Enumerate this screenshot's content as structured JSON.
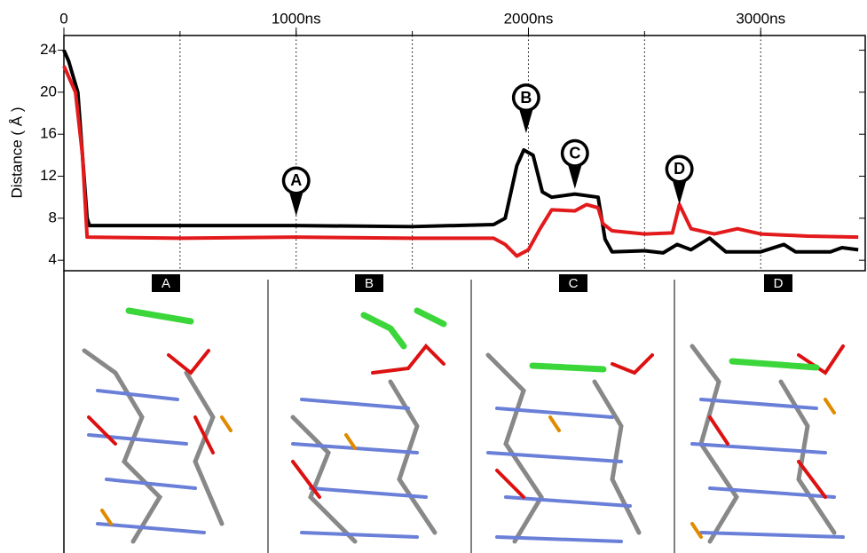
{
  "chart_data": {
    "type": "line",
    "y_label": "Distance ( Å )",
    "xlim": [
      0,
      3450
    ],
    "ylim": [
      3,
      25.4
    ],
    "xticks": [
      0,
      {
        "value": 1000,
        "label": "1000ns"
      },
      {
        "value": 2000,
        "label": "2000ns"
      },
      {
        "value": 3000,
        "label": "3000ns"
      }
    ],
    "x_gridlines": [
      500,
      1000,
      1500,
      2000,
      2500,
      3000
    ],
    "yticks": [
      4,
      8,
      12,
      16,
      20,
      24
    ],
    "grid": true,
    "series": [
      {
        "color": "#000000",
        "x": [
          0,
          20,
          60,
          100,
          110,
          500,
          1000,
          1500,
          1850,
          1900,
          1950,
          1980,
          2020,
          2060,
          2100,
          2200,
          2300,
          2330,
          2360,
          2500,
          2580,
          2640,
          2700,
          2780,
          2850,
          3000,
          3100,
          3150,
          3300,
          3350,
          3420
        ],
        "values": [
          24,
          23,
          20,
          8,
          7.3,
          7.3,
          7.3,
          7.2,
          7.4,
          8,
          13,
          14.5,
          14,
          10.5,
          10,
          10.3,
          10,
          6,
          4.8,
          4.9,
          4.7,
          5.5,
          5,
          6.1,
          4.8,
          4.8,
          5.5,
          4.8,
          4.8,
          5.2,
          5
        ]
      },
      {
        "color": "#e31a1c",
        "x": [
          0,
          50,
          80,
          100,
          500,
          1000,
          1500,
          1850,
          1900,
          1950,
          2000,
          2050,
          2100,
          2200,
          2250,
          2300,
          2320,
          2360,
          2500,
          2620,
          2650,
          2700,
          2800,
          2900,
          3000,
          3200,
          3420
        ],
        "values": [
          22.5,
          20,
          14,
          6.2,
          6.1,
          6.2,
          6.1,
          6.1,
          5.5,
          4.4,
          5,
          7,
          8.8,
          8.7,
          9.3,
          9,
          7.5,
          6.8,
          6.5,
          6.6,
          9.3,
          7,
          6.5,
          7,
          6.5,
          6.3,
          6.2
        ]
      }
    ],
    "annotations": [
      {
        "label": "A",
        "x": 1000,
        "y": 8.2
      },
      {
        "label": "B",
        "x": 1990,
        "y": 16.1
      },
      {
        "label": "C",
        "x": 2200,
        "y": 10.8
      },
      {
        "label": "D",
        "x": 2650,
        "y": 9.3
      }
    ],
    "panels": [
      "A",
      "B",
      "C",
      "D"
    ]
  }
}
